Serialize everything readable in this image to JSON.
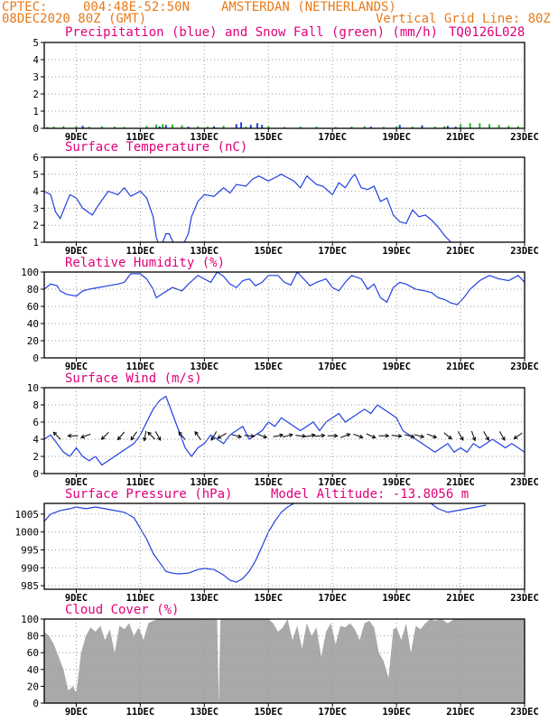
{
  "header": {
    "source": "CPTEC:",
    "location_coords": "004:48E-52:50N",
    "location_name": "AMSTERDAN (NETHERLANDS)",
    "run_time": "08DEC2020 80Z (GMT)",
    "grid_note": "Vertical Grid Line: 80Z",
    "model_id": "TQ0126L028"
  },
  "colors": {
    "header_text": "#e87a1a",
    "panel_title": "#e0007a",
    "line": "#2040e0",
    "snow": "#22bb22",
    "cloud_fill": "#a9a9a9",
    "grid": "#9a9a9a"
  },
  "x_axis": {
    "range_days": [
      8.0,
      23.0
    ],
    "tick_days": [
      9,
      11,
      13,
      15,
      17,
      19,
      21,
      23
    ],
    "tick_labels": [
      "9DEC",
      "11DEC",
      "13DEC",
      "15DEC",
      "17DEC",
      "19DEC",
      "21DEC",
      "23DEC"
    ]
  },
  "chart_data": [
    {
      "id": "precip",
      "type": "bar",
      "title": "Precipitation (blue) and Snow Fall (green) (mm/h)",
      "ylim": [
        0,
        5
      ],
      "yticks": [
        0,
        1,
        2,
        3,
        4,
        5
      ],
      "grid": true,
      "series": [
        {
          "name": "Precipitation",
          "color": "#2040e0",
          "points": [
            [
              9.2,
              0.15
            ],
            [
              11.6,
              0.12
            ],
            [
              11.8,
              0.2
            ],
            [
              12.5,
              0.1
            ],
            [
              13.3,
              0.12
            ],
            [
              14.0,
              0.25
            ],
            [
              14.15,
              0.35
            ],
            [
              14.45,
              0.2
            ],
            [
              14.65,
              0.3
            ],
            [
              14.8,
              0.2
            ],
            [
              18.2,
              0.1
            ],
            [
              19.1,
              0.2
            ],
            [
              19.8,
              0.18
            ],
            [
              20.6,
              0.15
            ],
            [
              20.85,
              0.1
            ]
          ]
        },
        {
          "name": "Snow Fall",
          "color": "#22bb22",
          "points": [
            [
              8.1,
              0.08
            ],
            [
              8.3,
              0.1
            ],
            [
              8.6,
              0.12
            ],
            [
              9.0,
              0.12
            ],
            [
              9.4,
              0.1
            ],
            [
              9.8,
              0.12
            ],
            [
              10.2,
              0.1
            ],
            [
              10.5,
              0.08
            ],
            [
              11.2,
              0.15
            ],
            [
              11.5,
              0.22
            ],
            [
              11.7,
              0.25
            ],
            [
              12.0,
              0.22
            ],
            [
              12.3,
              0.18
            ],
            [
              12.8,
              0.12
            ],
            [
              13.1,
              0.1
            ],
            [
              13.6,
              0.15
            ],
            [
              14.3,
              0.1
            ],
            [
              15.0,
              0.12
            ],
            [
              15.5,
              0.08
            ],
            [
              16.0,
              0.1
            ],
            [
              16.5,
              0.1
            ],
            [
              17.1,
              0.08
            ],
            [
              17.6,
              0.1
            ],
            [
              18.0,
              0.12
            ],
            [
              18.6,
              0.08
            ],
            [
              19.0,
              0.1
            ],
            [
              19.5,
              0.1
            ],
            [
              20.2,
              0.1
            ],
            [
              20.5,
              0.12
            ],
            [
              21.0,
              0.25
            ],
            [
              21.3,
              0.3
            ],
            [
              21.6,
              0.3
            ],
            [
              21.9,
              0.25
            ],
            [
              22.2,
              0.2
            ],
            [
              22.5,
              0.15
            ],
            [
              22.8,
              0.12
            ]
          ]
        }
      ]
    },
    {
      "id": "temp",
      "type": "line",
      "title": "Surface Temperature (nC)",
      "ylim": [
        1,
        6
      ],
      "yticks": [
        1,
        2,
        3,
        4,
        5,
        6
      ],
      "grid": true,
      "x": [
        8.0,
        8.2,
        8.35,
        8.5,
        8.8,
        9.0,
        9.2,
        9.5,
        9.7,
        9.85,
        10.0,
        10.3,
        10.5,
        10.7,
        11.0,
        11.2,
        11.4,
        11.5,
        11.6,
        11.7,
        11.8,
        11.9,
        12.1,
        12.3,
        12.5,
        12.6,
        12.8,
        13.0,
        13.3,
        13.6,
        13.8,
        14.0,
        14.3,
        14.5,
        14.7,
        15.0,
        15.2,
        15.4,
        15.6,
        15.8,
        16.0,
        16.2,
        16.5,
        16.7,
        17.0,
        17.2,
        17.4,
        17.6,
        17.7,
        17.9,
        18.1,
        18.3,
        18.5,
        18.7,
        18.9,
        19.1,
        19.3,
        19.5,
        19.7,
        19.9,
        20.1,
        20.3,
        20.5,
        20.7,
        20.9
      ],
      "y": [
        4.0,
        3.8,
        2.8,
        2.4,
        3.8,
        3.6,
        3.0,
        2.6,
        3.2,
        3.6,
        4.0,
        3.8,
        4.2,
        3.7,
        4.0,
        3.6,
        2.5,
        1.3,
        0.7,
        1.0,
        1.5,
        1.5,
        0.7,
        0.7,
        1.5,
        2.5,
        3.4,
        3.8,
        3.7,
        4.2,
        3.9,
        4.4,
        4.3,
        4.7,
        4.9,
        4.6,
        4.8,
        5.0,
        4.8,
        4.6,
        4.2,
        4.9,
        4.4,
        4.3,
        3.8,
        4.5,
        4.2,
        4.8,
        5.0,
        4.2,
        4.1,
        4.3,
        3.4,
        3.6,
        2.6,
        2.2,
        2.1,
        2.9,
        2.5,
        2.6,
        2.3,
        1.9,
        1.4,
        1.0,
        0.5
      ]
    },
    {
      "id": "rh",
      "type": "line",
      "title": "Relative Humidity (%)",
      "ylim": [
        0,
        100
      ],
      "yticks": [
        0,
        20,
        40,
        60,
        80,
        100
      ],
      "grid": true,
      "x": [
        8.0,
        8.2,
        8.4,
        8.5,
        8.7,
        9.0,
        9.2,
        9.4,
        9.7,
        10.0,
        10.3,
        10.5,
        10.7,
        11.0,
        11.2,
        11.4,
        11.5,
        11.7,
        12.0,
        12.3,
        12.5,
        12.8,
        13.0,
        13.2,
        13.4,
        13.6,
        13.8,
        14.0,
        14.2,
        14.4,
        14.6,
        14.8,
        15.0,
        15.3,
        15.5,
        15.7,
        15.9,
        16.1,
        16.3,
        16.5,
        16.8,
        17.0,
        17.2,
        17.4,
        17.6,
        17.9,
        18.1,
        18.3,
        18.5,
        18.7,
        18.9,
        19.1,
        19.3,
        19.6,
        19.9,
        20.1,
        20.3,
        20.5,
        20.7,
        20.9,
        21.1,
        21.3,
        21.6,
        21.9,
        22.2,
        22.5,
        22.8,
        23.0
      ],
      "y": [
        80,
        86,
        84,
        78,
        74,
        72,
        78,
        80,
        82,
        84,
        86,
        88,
        98,
        98,
        92,
        80,
        70,
        75,
        82,
        78,
        86,
        96,
        92,
        88,
        100,
        95,
        86,
        82,
        90,
        92,
        84,
        88,
        96,
        96,
        88,
        85,
        100,
        92,
        84,
        88,
        92,
        82,
        78,
        88,
        96,
        92,
        80,
        86,
        70,
        65,
        82,
        88,
        86,
        80,
        78,
        76,
        70,
        68,
        64,
        62,
        70,
        80,
        90,
        96,
        92,
        90,
        96,
        88
      ]
    },
    {
      "id": "wind",
      "type": "line",
      "title": "Surface Wind (m/s)",
      "ylim": [
        0,
        10
      ],
      "yticks": [
        0,
        2,
        4,
        6,
        8,
        10
      ],
      "grid": true,
      "x": [
        8.0,
        8.2,
        8.4,
        8.6,
        8.8,
        9.0,
        9.2,
        9.4,
        9.6,
        9.8,
        10.0,
        10.2,
        10.4,
        10.6,
        10.8,
        11.0,
        11.2,
        11.4,
        11.6,
        11.8,
        12.0,
        12.2,
        12.4,
        12.6,
        12.8,
        13.0,
        13.2,
        13.4,
        13.6,
        13.8,
        14.0,
        14.2,
        14.4,
        14.6,
        14.8,
        15.0,
        15.2,
        15.4,
        15.6,
        15.8,
        16.0,
        16.2,
        16.4,
        16.6,
        16.8,
        17.0,
        17.2,
        17.4,
        17.6,
        17.8,
        18.0,
        18.2,
        18.4,
        18.6,
        18.8,
        19.0,
        19.2,
        19.4,
        19.6,
        19.8,
        20.0,
        20.2,
        20.4,
        20.6,
        20.8,
        21.0,
        21.2,
        21.4,
        21.6,
        21.8,
        22.0,
        22.2,
        22.4,
        22.6,
        22.8,
        23.0
      ],
      "y": [
        4.0,
        4.5,
        3.5,
        2.5,
        2.0,
        3.0,
        2.0,
        1.5,
        2.0,
        1.0,
        1.5,
        2.0,
        2.5,
        3.0,
        3.5,
        4.5,
        6.0,
        7.5,
        8.5,
        9.0,
        7.0,
        5.0,
        3.0,
        2.0,
        3.0,
        3.5,
        4.5,
        4.0,
        3.5,
        4.5,
        5.0,
        5.5,
        4.0,
        4.5,
        5.0,
        6.0,
        5.5,
        6.5,
        6.0,
        5.5,
        5.0,
        5.5,
        6.0,
        5.0,
        6.0,
        6.5,
        7.0,
        6.0,
        6.5,
        7.0,
        7.5,
        7.0,
        8.0,
        7.5,
        7.0,
        6.5,
        5.0,
        4.5,
        4.0,
        3.5,
        3.0,
        2.5,
        3.0,
        3.5,
        2.5,
        3.0,
        2.5,
        3.5,
        3.0,
        3.5,
        4.0,
        3.5,
        3.0,
        3.5,
        3.0,
        2.5
      ]
    },
    {
      "id": "pressure",
      "type": "line",
      "title": "Surface Pressure (hPa)",
      "annotation": "Model Altitude: -13.8056 m",
      "ylim": [
        984,
        1008
      ],
      "yticks": [
        985,
        990,
        995,
        1000,
        1005
      ],
      "grid": true,
      "x": [
        8.0,
        8.2,
        8.5,
        8.8,
        9.0,
        9.3,
        9.6,
        9.9,
        10.2,
        10.5,
        10.8,
        11.0,
        11.2,
        11.4,
        11.6,
        11.8,
        12.0,
        12.2,
        12.5,
        12.8,
        13.0,
        13.3,
        13.6,
        13.8,
        14.0,
        14.2,
        14.4,
        14.6,
        14.8,
        15.0,
        15.2,
        15.4,
        15.6,
        15.8,
        16.0,
        16.2,
        16.5,
        17.0,
        17.5,
        18.0,
        18.5,
        19.0,
        19.5,
        20.0,
        20.3,
        20.6,
        20.9,
        21.2,
        21.5,
        21.8
      ],
      "y": [
        1003.0,
        1005.0,
        1006.0,
        1006.5,
        1007.0,
        1006.5,
        1007.0,
        1006.5,
        1006.0,
        1005.5,
        1004.0,
        1001.0,
        998.0,
        994.0,
        991.5,
        989.0,
        988.5,
        988.3,
        988.5,
        989.5,
        989.8,
        989.5,
        988.0,
        986.5,
        986.0,
        987.0,
        989.0,
        992.0,
        996.0,
        1000.0,
        1003.0,
        1005.5,
        1007.0,
        1008.0,
        1009.0,
        1009.5,
        1010.0,
        1010.0,
        1010.0,
        1010.0,
        1010.0,
        1010.0,
        1009.5,
        1008.5,
        1006.5,
        1005.5,
        1006.0,
        1006.5,
        1007.0,
        1007.5
      ]
    },
    {
      "id": "cloud",
      "type": "area",
      "title": "Cloud Cover (%)",
      "ylim": [
        0,
        100
      ],
      "yticks": [
        0,
        20,
        40,
        60,
        80,
        100
      ],
      "grid": true,
      "x": [
        8.0,
        8.15,
        8.3,
        8.45,
        8.6,
        8.75,
        8.9,
        9.0,
        9.15,
        9.3,
        9.45,
        9.6,
        9.75,
        9.9,
        10.05,
        10.2,
        10.35,
        10.5,
        10.65,
        10.8,
        10.95,
        11.1,
        11.25,
        11.4,
        11.55,
        11.7,
        11.85,
        12.0,
        12.3,
        12.6,
        12.9,
        13.2,
        13.4,
        13.45,
        13.5,
        13.6,
        13.8,
        14.0,
        14.2,
        14.4,
        14.6,
        14.8,
        15.0,
        15.15,
        15.3,
        15.45,
        15.6,
        15.75,
        15.9,
        16.05,
        16.2,
        16.35,
        16.5,
        16.65,
        16.8,
        16.95,
        17.1,
        17.25,
        17.4,
        17.55,
        17.7,
        17.85,
        18.0,
        18.15,
        18.3,
        18.45,
        18.6,
        18.75,
        18.9,
        19.0,
        19.15,
        19.3,
        19.45,
        19.6,
        19.75,
        19.9,
        20.05,
        20.2,
        20.4,
        20.6,
        20.8,
        21.0,
        21.3,
        21.6,
        21.9,
        22.2,
        22.5,
        22.8,
        23.0
      ],
      "y": [
        85,
        80,
        70,
        55,
        40,
        15,
        20,
        12,
        60,
        80,
        90,
        85,
        92,
        75,
        88,
        60,
        92,
        88,
        95,
        80,
        90,
        75,
        95,
        98,
        100,
        100,
        100,
        100,
        100,
        100,
        100,
        100,
        100,
        0,
        100,
        100,
        100,
        100,
        100,
        100,
        100,
        100,
        100,
        95,
        85,
        90,
        100,
        75,
        92,
        65,
        95,
        80,
        90,
        55,
        85,
        95,
        70,
        92,
        90,
        95,
        88,
        75,
        95,
        98,
        90,
        60,
        50,
        30,
        88,
        90,
        75,
        95,
        60,
        92,
        88,
        95,
        100,
        98,
        100,
        95,
        100,
        100,
        100,
        100,
        100,
        100,
        100,
        100,
        100
      ]
    }
  ],
  "wind_arrows": [
    {
      "day": 8.4,
      "dir": 135
    },
    {
      "day": 8.9,
      "dir": 180
    },
    {
      "day": 9.3,
      "dir": 200
    },
    {
      "day": 9.9,
      "dir": 225
    },
    {
      "day": 10.4,
      "dir": 230
    },
    {
      "day": 10.8,
      "dir": 235
    },
    {
      "day": 11.15,
      "dir": 260
    },
    {
      "day": 11.35,
      "dir": 135
    },
    {
      "day": 11.55,
      "dir": 300
    },
    {
      "day": 12.3,
      "dir": 130
    },
    {
      "day": 12.8,
      "dir": 125
    },
    {
      "day": 13.3,
      "dir": 240
    },
    {
      "day": 13.55,
      "dir": 210
    },
    {
      "day": 14.0,
      "dir": 345
    },
    {
      "day": 14.4,
      "dir": 355
    },
    {
      "day": 14.8,
      "dir": 340
    },
    {
      "day": 15.3,
      "dir": 10
    },
    {
      "day": 15.6,
      "dir": 15
    },
    {
      "day": 16.0,
      "dir": 355
    },
    {
      "day": 16.3,
      "dir": 10
    },
    {
      "day": 16.6,
      "dir": 5
    },
    {
      "day": 17.0,
      "dir": 0
    },
    {
      "day": 17.4,
      "dir": 20
    },
    {
      "day": 17.8,
      "dir": 340
    },
    {
      "day": 18.2,
      "dir": 335
    },
    {
      "day": 18.6,
      "dir": 0
    },
    {
      "day": 19.0,
      "dir": 355
    },
    {
      "day": 19.4,
      "dir": 345
    },
    {
      "day": 19.7,
      "dir": 345
    },
    {
      "day": 20.1,
      "dir": 340
    },
    {
      "day": 20.6,
      "dir": 320
    },
    {
      "day": 21.0,
      "dir": 300
    },
    {
      "day": 21.4,
      "dir": 290
    },
    {
      "day": 21.8,
      "dir": 300
    },
    {
      "day": 22.3,
      "dir": 300
    },
    {
      "day": 22.8,
      "dir": 215
    }
  ]
}
